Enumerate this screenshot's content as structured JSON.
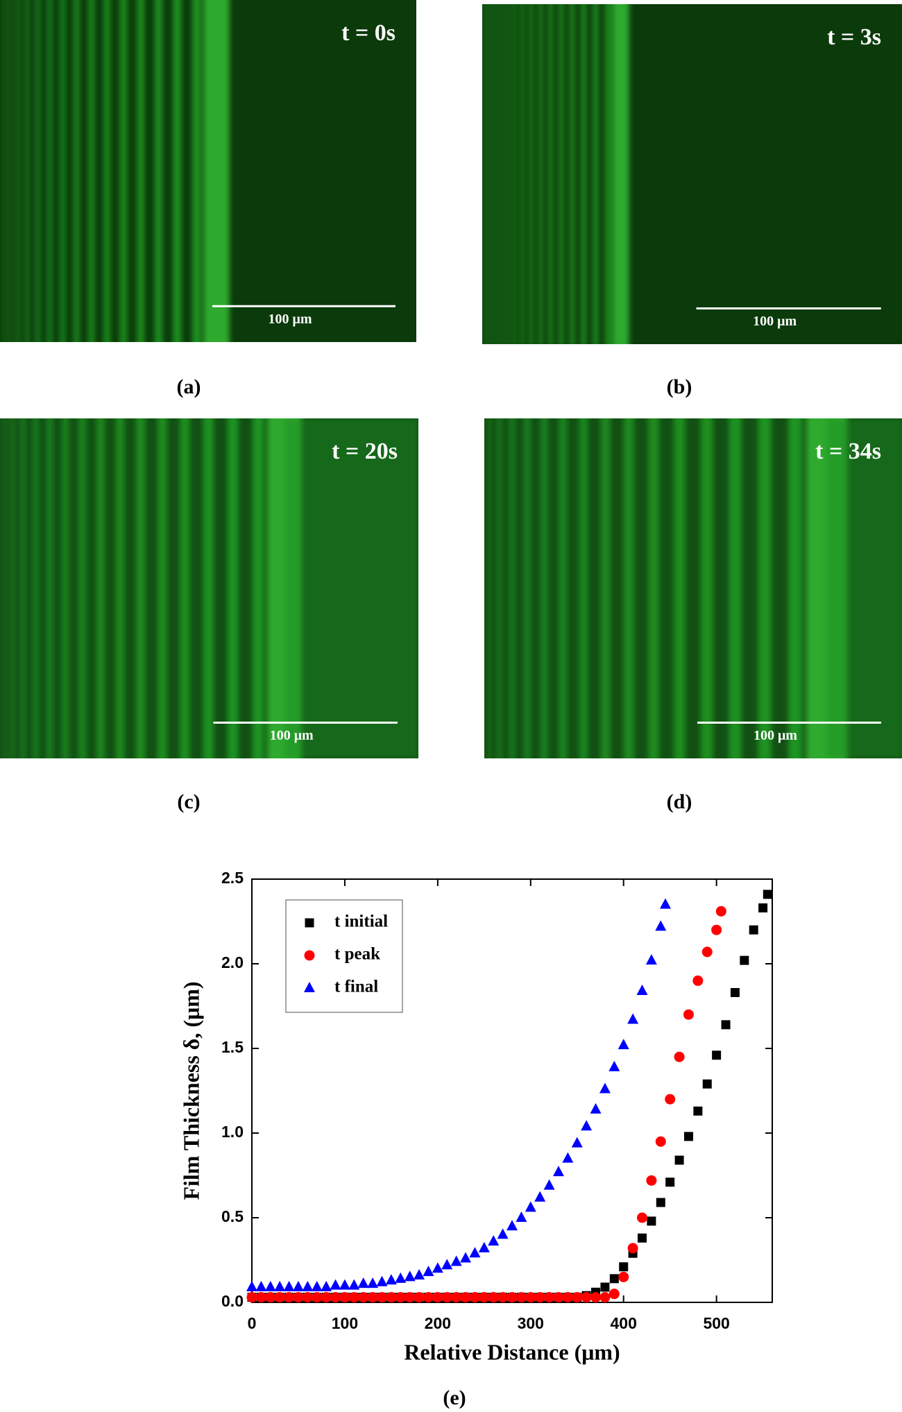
{
  "panels": [
    {
      "time": "t = 0s",
      "scale": "100 μm",
      "label": "(a)"
    },
    {
      "time": "t = 3s",
      "scale": "100 μm",
      "label": "(b)"
    },
    {
      "time": "t = 20s",
      "scale": "100 μm",
      "label": "(c)"
    },
    {
      "time": "t = 34s",
      "scale": "100 μm",
      "label": "(d)"
    }
  ],
  "chart_data": {
    "type": "scatter",
    "label": "(e)",
    "x_label": "Relative Distance (μm)",
    "y_label": "Film Thickness δ, (μm)",
    "xlim": [
      0,
      560
    ],
    "xticks": [
      0,
      100,
      200,
      300,
      400,
      500
    ],
    "ylim": [
      0,
      2.5
    ],
    "yticks": [
      {
        "value": 0,
        "label": "0.0"
      },
      0.5,
      {
        "value": 1,
        "label": "1.0"
      },
      1.5,
      {
        "value": 2,
        "label": "2.0"
      },
      2.5
    ],
    "legend": "upper left",
    "series": [
      {
        "name": "t initial",
        "color": "#000000",
        "marker": "square",
        "x": [
          0,
          10,
          20,
          30,
          40,
          50,
          60,
          70,
          80,
          90,
          100,
          110,
          120,
          130,
          140,
          150,
          160,
          170,
          180,
          190,
          200,
          210,
          220,
          230,
          240,
          250,
          260,
          270,
          280,
          290,
          300,
          310,
          320,
          330,
          340,
          350,
          360,
          370,
          380,
          390,
          400,
          410,
          420,
          430,
          440,
          450,
          460,
          470,
          480,
          490,
          500,
          510,
          520,
          530,
          540,
          550,
          555
        ],
        "values": [
          0.03,
          0.03,
          0.03,
          0.03,
          0.03,
          0.03,
          0.03,
          0.03,
          0.03,
          0.03,
          0.03,
          0.03,
          0.03,
          0.03,
          0.03,
          0.03,
          0.03,
          0.03,
          0.03,
          0.03,
          0.03,
          0.03,
          0.03,
          0.03,
          0.03,
          0.03,
          0.03,
          0.03,
          0.03,
          0.03,
          0.03,
          0.03,
          0.03,
          0.03,
          0.03,
          0.03,
          0.04,
          0.06,
          0.09,
          0.14,
          0.21,
          0.29,
          0.38,
          0.48,
          0.59,
          0.71,
          0.84,
          0.98,
          1.13,
          1.29,
          1.46,
          1.64,
          1.83,
          2.02,
          2.2,
          2.33,
          2.41
        ]
      },
      {
        "name": "t peak",
        "color": "#ff0000",
        "marker": "circle",
        "x": [
          0,
          10,
          20,
          30,
          40,
          50,
          60,
          70,
          80,
          90,
          100,
          110,
          120,
          130,
          140,
          150,
          160,
          170,
          180,
          190,
          200,
          210,
          220,
          230,
          240,
          250,
          260,
          270,
          280,
          290,
          300,
          310,
          320,
          330,
          340,
          350,
          360,
          370,
          380,
          390,
          400,
          410,
          420,
          430,
          440,
          450,
          460,
          470,
          480,
          490,
          500,
          505
        ],
        "values": [
          0.03,
          0.03,
          0.03,
          0.03,
          0.03,
          0.03,
          0.03,
          0.03,
          0.03,
          0.03,
          0.03,
          0.03,
          0.03,
          0.03,
          0.03,
          0.03,
          0.03,
          0.03,
          0.03,
          0.03,
          0.03,
          0.03,
          0.03,
          0.03,
          0.03,
          0.03,
          0.03,
          0.03,
          0.03,
          0.03,
          0.03,
          0.03,
          0.03,
          0.03,
          0.03,
          0.03,
          0.03,
          0.03,
          0.03,
          0.05,
          0.15,
          0.32,
          0.5,
          0.72,
          0.95,
          1.2,
          1.45,
          1.7,
          1.9,
          2.07,
          2.2,
          2.31
        ]
      },
      {
        "name": "t final",
        "color": "#0000ff",
        "marker": "triangle",
        "x": [
          0,
          10,
          20,
          30,
          40,
          50,
          60,
          70,
          80,
          90,
          100,
          110,
          120,
          130,
          140,
          150,
          160,
          170,
          180,
          190,
          200,
          210,
          220,
          230,
          240,
          250,
          260,
          270,
          280,
          290,
          300,
          310,
          320,
          330,
          340,
          350,
          360,
          370,
          380,
          390,
          400,
          410,
          420,
          430,
          440,
          445
        ],
        "values": [
          0.09,
          0.09,
          0.09,
          0.09,
          0.09,
          0.09,
          0.09,
          0.09,
          0.09,
          0.1,
          0.1,
          0.1,
          0.11,
          0.11,
          0.12,
          0.13,
          0.14,
          0.15,
          0.16,
          0.18,
          0.2,
          0.22,
          0.24,
          0.26,
          0.29,
          0.32,
          0.36,
          0.4,
          0.45,
          0.5,
          0.56,
          0.62,
          0.69,
          0.77,
          0.85,
          0.94,
          1.04,
          1.14,
          1.26,
          1.39,
          1.52,
          1.67,
          1.84,
          2.02,
          2.22,
          2.35
        ]
      }
    ]
  }
}
